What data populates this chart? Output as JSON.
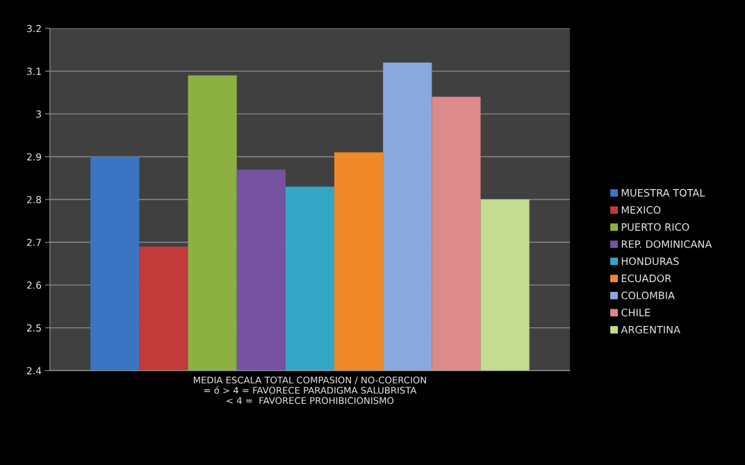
{
  "chart_data": {
    "type": "bar",
    "categories": [
      "MEDIA ESCALA TOTAL COMPASION / NO-COERCION\n= ó > 4 = FAVORECE PARADIGMA SALUBRISTA\n< 4 =  FAVORECE PROHIBICIONISMO"
    ],
    "series": [
      {
        "name": "MUESTRA TOTAL",
        "color": "#3b74c2",
        "values": [
          2.9
        ]
      },
      {
        "name": "MEXICO",
        "color": "#c23b3b",
        "values": [
          2.69
        ]
      },
      {
        "name": "PUERTO RICO",
        "color": "#8db042",
        "values": [
          3.09
        ]
      },
      {
        "name": "REP. DOMINICANA",
        "color": "#7752a0",
        "values": [
          2.87
        ]
      },
      {
        "name": "HONDURAS",
        "color": "#34a6c6",
        "values": [
          2.83
        ]
      },
      {
        "name": "ECUADOR",
        "color": "#f08828",
        "values": [
          2.91
        ]
      },
      {
        "name": "COLOMBIA",
        "color": "#8aa8dc",
        "values": [
          3.12
        ]
      },
      {
        "name": "CHILE",
        "color": "#dc8a8a",
        "values": [
          3.04
        ]
      },
      {
        "name": "ARGENTINA",
        "color": "#c3dc92",
        "values": [
          2.8
        ]
      }
    ],
    "ylim": [
      2.4,
      3.2
    ],
    "yticks": [
      2.4,
      2.5,
      2.6,
      2.7,
      2.8,
      2.9,
      3,
      3.1,
      3.2
    ],
    "grid": "y",
    "legend": "right"
  }
}
